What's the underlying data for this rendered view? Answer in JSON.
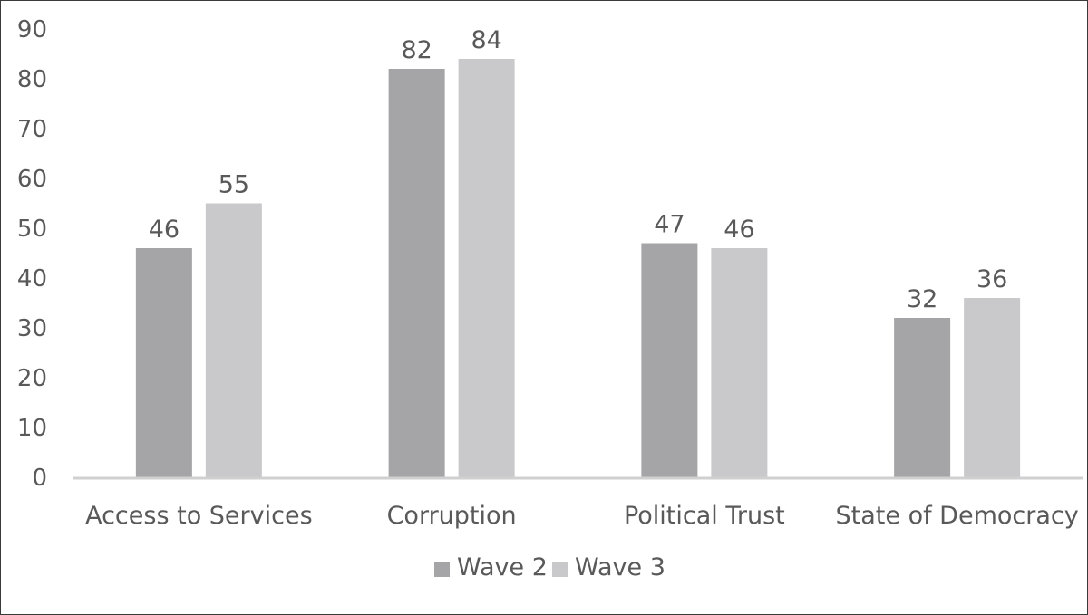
{
  "chart_data": {
    "type": "bar",
    "title": "",
    "xlabel": "",
    "ylabel": "",
    "ylim": [
      0,
      90
    ],
    "yticks": [
      0,
      10,
      20,
      30,
      40,
      50,
      60,
      70,
      80,
      90
    ],
    "grid": false,
    "legend_position": "bottom",
    "categories": [
      "Access to Services",
      "Corruption",
      "Political Trust",
      "State of Democracy"
    ],
    "series": [
      {
        "name": "Wave 2",
        "values": [
          46,
          82,
          47,
          32
        ],
        "color": "#a5a5a7"
      },
      {
        "name": "Wave 3",
        "values": [
          55,
          84,
          46,
          36
        ],
        "color": "#c9c9cb"
      }
    ],
    "data_labels": true
  }
}
